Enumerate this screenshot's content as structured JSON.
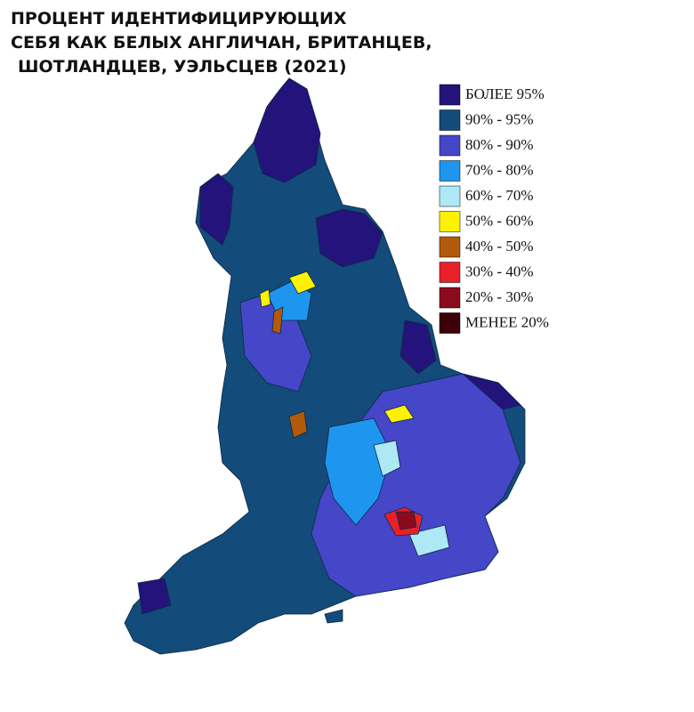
{
  "title": [
    "ПРОЦЕНТ ИДЕНТИФИЦИРУЮЩИХ",
    "СЕБЯ КАК БЕЛЫХ АНГЛИЧАН, БРИТАНЦЕВ,",
    "ШОТЛАНДЦЕВ, УЭЛЬСЦЕВ (2021)"
  ],
  "legend": [
    {
      "label": "БОЛЕЕ 95%",
      "color": "#23137a"
    },
    {
      "label": "90% - 95%",
      "color": "#134b7a"
    },
    {
      "label": "80% - 90%",
      "color": "#4646c8"
    },
    {
      "label": "70% - 80%",
      "color": "#1e96f0"
    },
    {
      "label": "60% - 70%",
      "color": "#aee8f5"
    },
    {
      "label": "50% - 60%",
      "color": "#fff200"
    },
    {
      "label": "40% - 50%",
      "color": "#b35a0a"
    },
    {
      "label": "30% - 40%",
      "color": "#e8202a"
    },
    {
      "label": "20% - 30%",
      "color": "#8b0a1e"
    },
    {
      "label": "МЕНЕЕ 20%",
      "color": "#3c0008"
    }
  ]
}
